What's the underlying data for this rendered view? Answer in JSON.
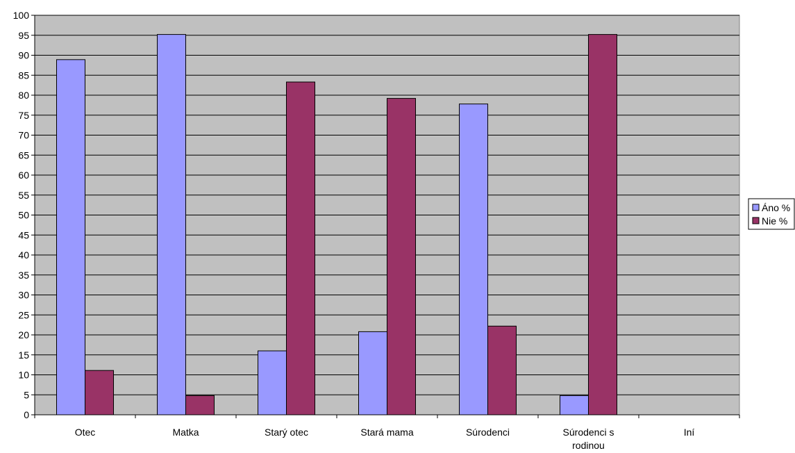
{
  "chart_data": {
    "type": "bar",
    "categories": [
      [
        "Otec"
      ],
      [
        "Matka"
      ],
      [
        "Starý otec"
      ],
      [
        "Stará mama"
      ],
      [
        "Súrodenci"
      ],
      [
        "Súrodenci s",
        "rodinou"
      ],
      [
        "Iní"
      ]
    ],
    "series": [
      {
        "name": "Áno %",
        "color": "#9999ff",
        "values": [
          88.9,
          95.2,
          16.0,
          20.8,
          77.8,
          4.8,
          null
        ]
      },
      {
        "name": "Nie %",
        "color": "#993366",
        "values": [
          11.1,
          4.8,
          83.3,
          79.2,
          22.2,
          95.2,
          null
        ]
      }
    ],
    "ylim": [
      0,
      100
    ],
    "ytick_step": 5,
    "grid": true,
    "plot_background": "#c0c0c0",
    "legend_position": "right",
    "title": "",
    "xlabel": "",
    "ylabel": ""
  }
}
